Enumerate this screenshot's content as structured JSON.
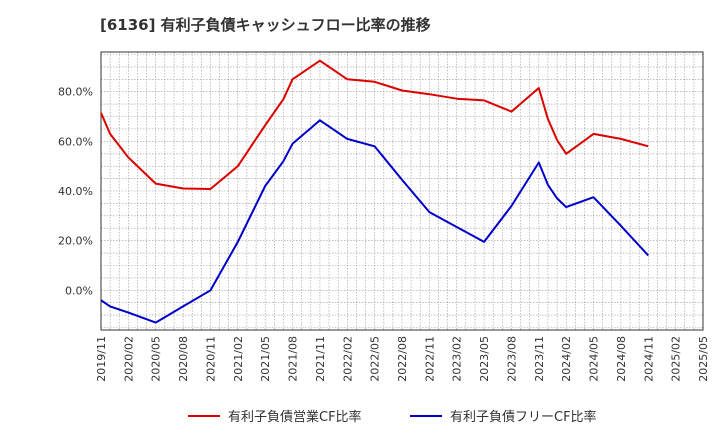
{
  "title": "[6136]  有利子負債キャッシュフロー比率の推移",
  "chart_data": {
    "type": "line",
    "title": "[6136]  有利子負債キャッシュフロー比率の推移",
    "xlabel": "",
    "ylabel": "",
    "ylim": [
      -16,
      96
    ],
    "yticks": [
      0,
      20,
      40,
      60,
      80
    ],
    "ytick_labels": [
      "0.0%",
      "20.0%",
      "40.0%",
      "60.0%",
      "80.0%"
    ],
    "x_tick_labels": [
      "2019/11",
      "2020/02",
      "2020/05",
      "2020/08",
      "2020/11",
      "2021/02",
      "2021/05",
      "2021/08",
      "2021/11",
      "2022/02",
      "2022/05",
      "2022/08",
      "2022/11",
      "2023/02",
      "2023/05",
      "2023/08",
      "2023/11",
      "2024/02",
      "2024/05",
      "2024/08",
      "2024/11",
      "2025/02",
      "2025/05"
    ],
    "grid": true,
    "legend_position": "bottom",
    "series": [
      {
        "name": "有利子負債営業CF比率",
        "color": "#dd0000",
        "x": [
          "2019/11",
          "2019/12",
          "2020/02",
          "2020/05",
          "2020/08",
          "2020/11",
          "2021/02",
          "2021/05",
          "2021/07",
          "2021/08",
          "2021/11",
          "2022/02",
          "2022/05",
          "2022/08",
          "2022/11",
          "2023/02",
          "2023/05",
          "2023/08",
          "2023/11",
          "2023/12",
          "2024/01",
          "2024/02",
          "2024/05",
          "2024/08",
          "2024/11"
        ],
        "values": [
          71.5,
          63,
          53.5,
          43,
          41,
          40.8,
          50,
          66.5,
          77,
          85,
          92.5,
          85,
          84,
          80.5,
          79,
          77.2,
          76.5,
          72,
          81.5,
          69,
          60.5,
          55,
          63,
          61,
          58
        ]
      },
      {
        "name": "有利子負債フリーCF比率",
        "color": "#0000cc",
        "x": [
          "2019/11",
          "2019/12",
          "2020/02",
          "2020/05",
          "2020/08",
          "2020/11",
          "2021/02",
          "2021/05",
          "2021/07",
          "2021/08",
          "2021/11",
          "2022/02",
          "2022/05",
          "2022/08",
          "2022/11",
          "2023/02",
          "2023/05",
          "2023/08",
          "2023/11",
          "2023/12",
          "2024/01",
          "2024/02",
          "2024/05",
          "2024/08",
          "2024/11"
        ],
        "values": [
          -4,
          -6.5,
          -9,
          -13,
          -6.5,
          0,
          19.5,
          42,
          52,
          59,
          68.5,
          61,
          58,
          44.5,
          31.5,
          25.5,
          19.5,
          34,
          51.5,
          42.5,
          37,
          33.5,
          37.5,
          26,
          14
        ]
      }
    ]
  }
}
